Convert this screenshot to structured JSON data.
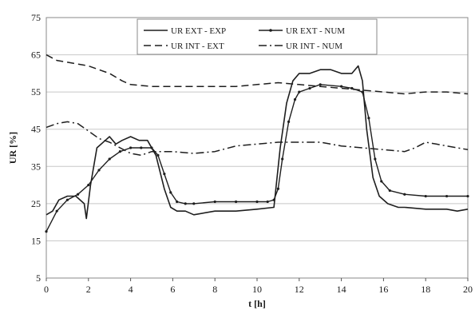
{
  "chart_data": {
    "type": "line",
    "xlabel": "t [h]",
    "ylabel": "UR [%]",
    "xlim": [
      0,
      20
    ],
    "ylim": [
      5,
      75
    ],
    "x_ticks": [
      0,
      2,
      4,
      6,
      8,
      10,
      12,
      14,
      16,
      18,
      20
    ],
    "y_ticks": [
      5,
      15,
      25,
      35,
      45,
      55,
      65,
      75
    ],
    "grid": "horizontal",
    "legend_position": "top-center",
    "series": [
      {
        "name": "UR EXT - EXP",
        "style": "solid",
        "x": [
          0,
          0.3,
          0.6,
          1.0,
          1.4,
          1.8,
          1.9,
          2.1,
          2.4,
          2.8,
          3.0,
          3.3,
          3.6,
          4.0,
          4.4,
          4.8,
          5.2,
          5.6,
          5.9,
          6.2,
          6.6,
          7.0,
          8.0,
          9.0,
          10.0,
          10.8,
          11.1,
          11.4,
          11.7,
          12.0,
          12.5,
          13.0,
          13.5,
          14.0,
          14.5,
          14.8,
          15.0,
          15.2,
          15.5,
          15.8,
          16.2,
          16.7,
          17.0,
          18.0,
          19.0,
          19.5,
          20.0
        ],
        "y": [
          22,
          23,
          26,
          27,
          27,
          25,
          21,
          30,
          40,
          42,
          43,
          41,
          42,
          43,
          42,
          42,
          38,
          29,
          24,
          23,
          23,
          22,
          23,
          23,
          23.5,
          24,
          40,
          52,
          58,
          60,
          60,
          61,
          61,
          60,
          60,
          62,
          58,
          45,
          32,
          27,
          25,
          24,
          24,
          23.5,
          23.5,
          23,
          23.5
        ]
      },
      {
        "name": "UR EXT - NUM",
        "style": "solid-marker",
        "x": [
          0,
          0.5,
          1.0,
          1.5,
          2.0,
          2.5,
          3.0,
          3.5,
          4.0,
          4.5,
          5.0,
          5.3,
          5.6,
          5.9,
          6.2,
          6.6,
          7.0,
          8.0,
          9.0,
          10.0,
          10.5,
          10.8,
          11.0,
          11.2,
          11.5,
          11.8,
          12.0,
          12.5,
          13.0,
          14.0,
          14.5,
          15.0,
          15.3,
          15.6,
          15.9,
          16.3,
          17.0,
          18.0,
          19.0,
          20.0
        ],
        "y": [
          17.5,
          23,
          26,
          27.5,
          30,
          34,
          37,
          39,
          40,
          40,
          40,
          38,
          33,
          28,
          25.5,
          25,
          25,
          25.5,
          25.5,
          25.5,
          25.5,
          26,
          29,
          37,
          47,
          53,
          55,
          56,
          57,
          56.5,
          56,
          55,
          48,
          37,
          31,
          28.5,
          27.5,
          27,
          27,
          27
        ]
      },
      {
        "name": "UR INT - EXT",
        "style": "dashed",
        "x": [
          0,
          0.5,
          1.0,
          2.0,
          3.0,
          3.6,
          4.0,
          5.0,
          6.0,
          7.0,
          8.0,
          9.0,
          10.0,
          11.0,
          12.0,
          13.0,
          14.0,
          15.0,
          16.0,
          17.0,
          18.0,
          19.0,
          20.0
        ],
        "y": [
          65,
          63.5,
          63,
          62,
          60,
          58,
          57,
          56.5,
          56.5,
          56.5,
          56.5,
          56.5,
          57,
          57.5,
          57,
          56.5,
          56,
          55.5,
          55,
          54.5,
          55,
          55,
          54.5
        ]
      },
      {
        "name": "UR INT - NUM",
        "style": "dash-dot",
        "x": [
          0,
          0.5,
          1.0,
          1.5,
          2.0,
          2.5,
          3.0,
          3.5,
          4.0,
          4.5,
          5.0,
          6.0,
          7.0,
          8.0,
          9.0,
          10.0,
          11.0,
          12.0,
          13.0,
          14.0,
          15.0,
          16.0,
          17.0,
          17.5,
          18.0,
          18.5,
          19.0,
          20.0
        ],
        "y": [
          45.5,
          46.5,
          47,
          46.5,
          44.5,
          42.5,
          41.5,
          40,
          38.5,
          38,
          39,
          39,
          38.5,
          39,
          40.5,
          41,
          41.5,
          41.5,
          41.5,
          40.5,
          40,
          39.5,
          39,
          40,
          41.5,
          41,
          40.5,
          39.5
        ]
      }
    ]
  }
}
